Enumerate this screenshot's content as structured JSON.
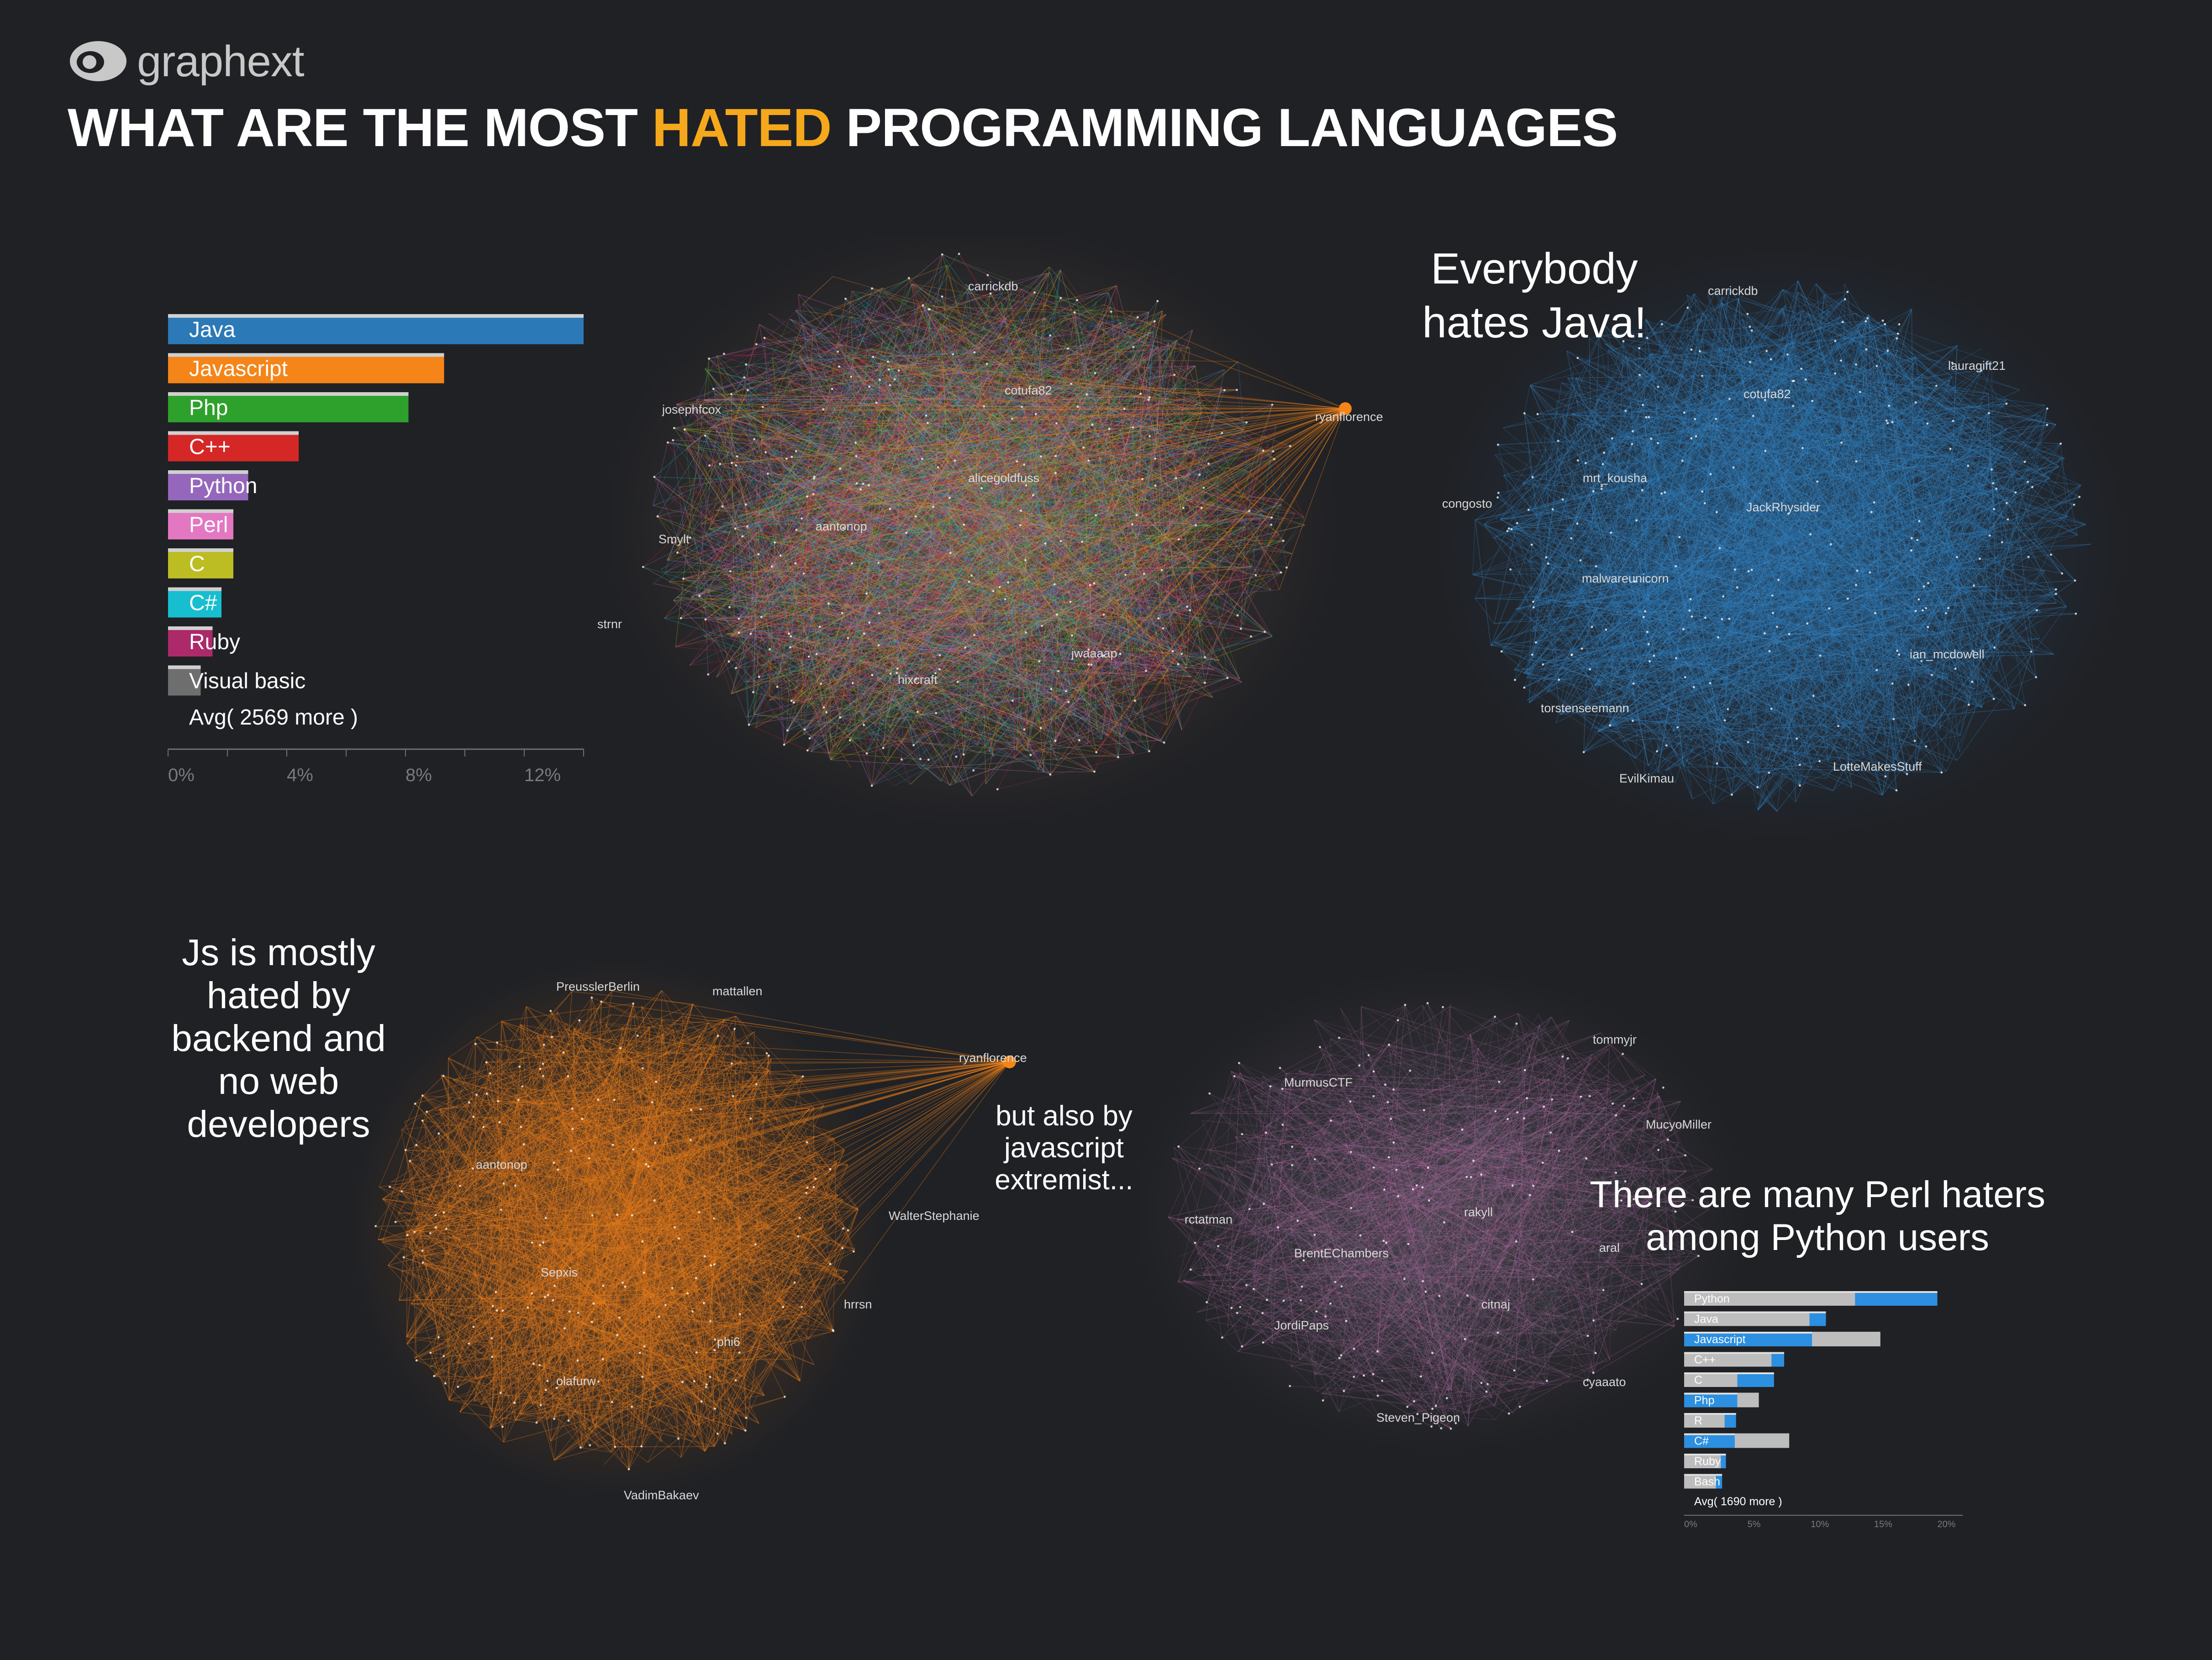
{
  "brand": {
    "name": "graphext"
  },
  "title": {
    "pre": "WHAT ARE THE MOST ",
    "highlight": "HATED",
    "post": " PROGRAMMING LANGUAGES"
  },
  "annotations": {
    "java": "Everybody hates Java!",
    "js": "Js is mostly hated by backend and no web developers",
    "js_extremist": "but also by javascript extremist...",
    "perl": "There are many Perl haters among Python users"
  },
  "colors": {
    "title_highlight": "#f5a81b",
    "java": "#2c79b8",
    "javascript": "#f58518",
    "php": "#2ea02c",
    "cpp": "#d62727",
    "python": "#9467bd",
    "perl": "#e377c2",
    "c": "#bcbd22",
    "csharp": "#17becf",
    "ruby": "#ad2a6a",
    "visual_basic": "#6e6e6e",
    "bar_blue": "#2d8fe0",
    "bar_grey": "#bdbdbd"
  },
  "networks": {
    "overall": [
      "carrickdb",
      "cotufa82",
      "josephfcox",
      "ryanflorence",
      "alicegoldfuss",
      "aantonop",
      "Smylt",
      "strnr",
      "jwaaaap",
      "hixcraft"
    ],
    "java": [
      "carrickdb",
      "lauragift21",
      "cotufa82",
      "mrt_kousha",
      "congosto",
      "JackRhysider",
      "malwareunicorn",
      "ian_mcdowell",
      "torstenseemann",
      "LotteMakesStuff",
      "EvilKimau"
    ],
    "javascript": [
      "PreusslerBerlin",
      "mattallen",
      "ryanflorence",
      "aantonop",
      "WalterStephanie",
      "Sepxis",
      "hrrsn",
      "phi6",
      "olafurw",
      "VadimBakaev"
    ],
    "perl": [
      "tommyjr",
      "MurmusCTF",
      "MucyoMiller",
      "rctatman",
      "rakyll",
      "BrentEChambers",
      "aral",
      "citnaj",
      "JordiPaps",
      "cyaaato",
      "Steven_Pigeon"
    ]
  },
  "chart_data": [
    {
      "type": "bar",
      "orientation": "horizontal",
      "categories": [
        "Java",
        "Javascript",
        "Php",
        "C++",
        "Python",
        "Perl",
        "C",
        "C#",
        "Ruby",
        "Visual basic"
      ],
      "values": [
        14,
        9.3,
        8.1,
        4.4,
        2.7,
        2.2,
        2.2,
        1.8,
        1.5,
        1.1
      ],
      "colors": [
        "#2c79b8",
        "#f58518",
        "#2ea02c",
        "#d62727",
        "#9467bd",
        "#e377c2",
        "#bcbd22",
        "#17becf",
        "#ad2a6a",
        "#6e6e6e"
      ],
      "avg_row": "Avg( 2569 more )",
      "xticks": [
        "0%",
        "4%",
        "8%",
        "12%"
      ],
      "xlim": [
        0,
        14
      ]
    },
    {
      "type": "bar",
      "orientation": "horizontal",
      "categories": [
        "Python",
        "Java",
        "Javascript",
        "C++",
        "C",
        "Php",
        "R",
        "C#",
        "Ruby",
        "Bash"
      ],
      "series": [
        {
          "values": [
            20,
            11.2,
            10.1,
            7.9,
            7.1,
            4.2,
            4.1,
            4.0,
            3.3,
            3.0
          ],
          "color": "#2d8fe0"
        },
        {
          "values": [
            13.5,
            9.9,
            15.5,
            6.9,
            4.2,
            5.9,
            3.2,
            8.3,
            2.9,
            2.5
          ],
          "color": "#bdbdbd"
        }
      ],
      "avg_row": "Avg( 1690 more )",
      "xticks": [
        "0%",
        "5%",
        "10%",
        "15%",
        "20%"
      ],
      "xlim": [
        0,
        22
      ]
    }
  ]
}
